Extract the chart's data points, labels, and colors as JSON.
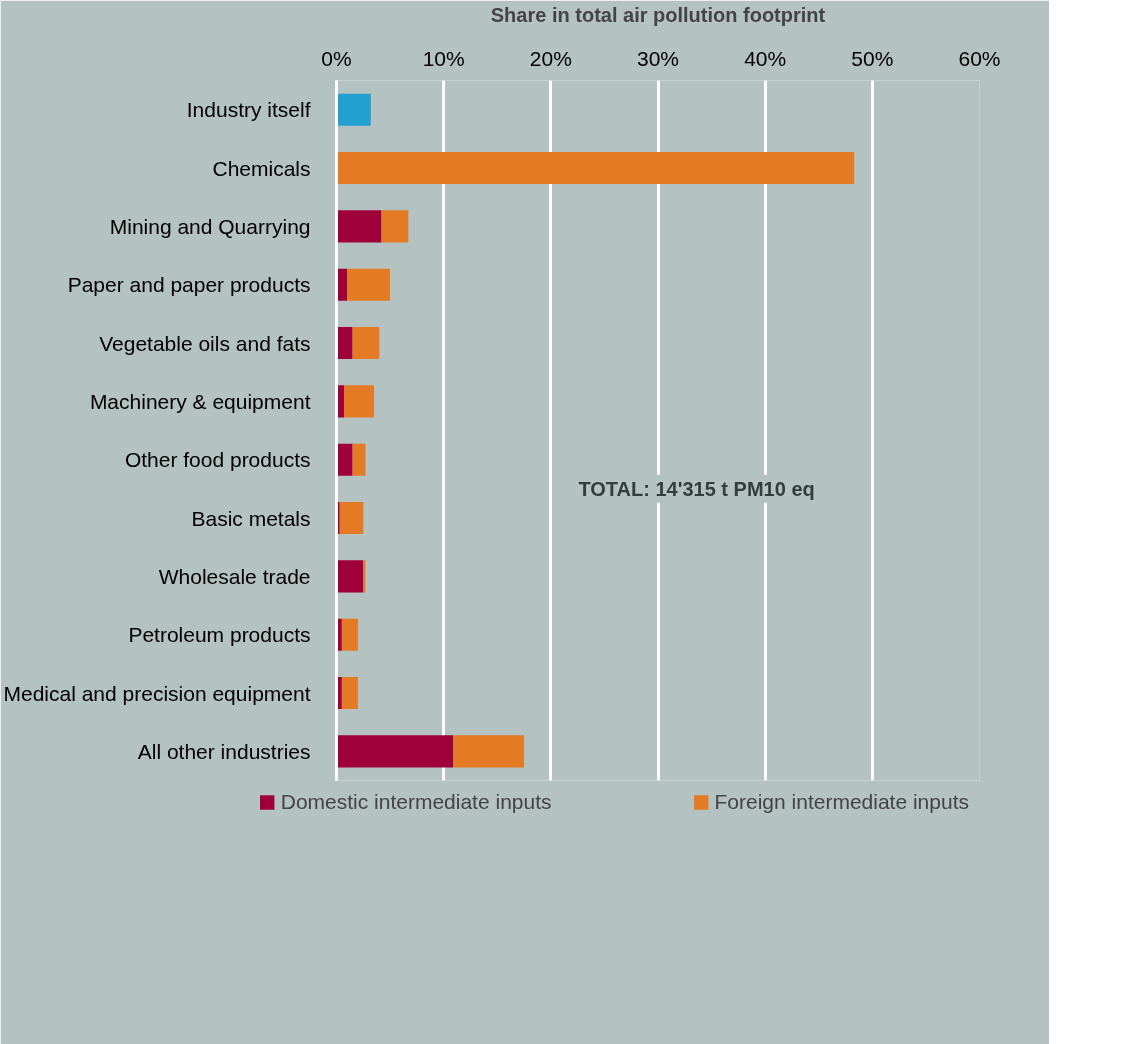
{
  "chart_data": {
    "type": "bar",
    "orientation": "horizontal",
    "stacked": true,
    "xlabel": "Share in total air pollution footprint",
    "categories": [
      "Industry itself",
      "Chemicals",
      "Mining and Quarrying",
      "Paper and paper products",
      "Vegetable oils and fats",
      "Machinery & equipment",
      "Other food products",
      "Basic metals",
      "Wholesale trade",
      "Petroleum products",
      "Medical and precision equipment",
      "All other industries"
    ],
    "series": [
      {
        "color": "#22a0d0",
        "values": [
          3.2,
          null,
          null,
          null,
          null,
          null,
          null,
          null,
          null,
          null,
          null,
          null
        ]
      },
      {
        "name": "Domestic intermediate inputs",
        "color": "#a0003a",
        "values": [
          null,
          null,
          4.2,
          1.0,
          1.5,
          0.7,
          1.5,
          0.3,
          2.5,
          0.5,
          0.5,
          10.9
        ]
      },
      {
        "name": "Foreign intermediate inputs",
        "color": "#e57a25",
        "values": [
          null,
          48.3,
          2.5,
          4.0,
          2.5,
          2.8,
          1.2,
          2.2,
          0.2,
          1.5,
          1.5,
          6.6
        ]
      }
    ],
    "xlim": [
      0,
      60
    ],
    "xticks": [
      {
        "value": 0,
        "label": "0%"
      },
      {
        "value": 10,
        "label": "10%"
      },
      {
        "value": 20,
        "label": "20%"
      },
      {
        "value": 30,
        "label": "30%"
      },
      {
        "value": 40,
        "label": "40%"
      },
      {
        "value": 50,
        "label": "50%"
      },
      {
        "value": 60,
        "label": "60%"
      }
    ],
    "grid": "x",
    "legend": "bottom",
    "annotations": [
      "TOTAL: 14'315 t PM10 eq"
    ]
  }
}
